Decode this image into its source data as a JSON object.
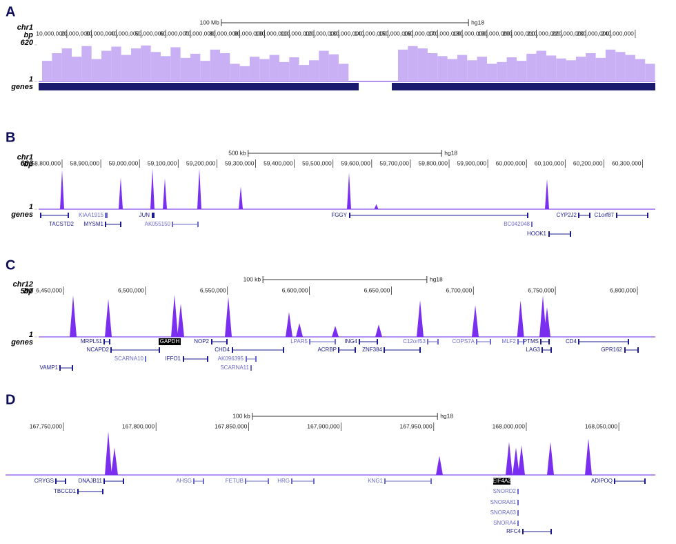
{
  "panels": [
    {
      "label": "A",
      "chrom": "chr1",
      "unit": "bp",
      "ylim": [
        1,
        620
      ],
      "yticks": [
        1,
        620
      ],
      "genes_label": "genes",
      "scale_bar": {
        "value": 100000000,
        "label": "100 Mb"
      },
      "assembly": "hg18",
      "xlim": [
        0,
        247000000
      ],
      "xticks": [
        {
          "value": 10000000,
          "label": "10,000,000"
        },
        {
          "value": 20000000,
          "label": "20,000,000"
        },
        {
          "value": 30000000,
          "label": "30,000,000"
        },
        {
          "value": 40000000,
          "label": "40,000,000"
        },
        {
          "value": 50000000,
          "label": "50,000,000"
        },
        {
          "value": 60000000,
          "label": "60,000,000"
        },
        {
          "value": 70000000,
          "label": "70,000,000"
        },
        {
          "value": 80000000,
          "label": "80,000,000"
        },
        {
          "value": 90000000,
          "label": "90,000,000"
        },
        {
          "value": 100000000,
          "label": "100,000,000"
        },
        {
          "value": 110000000,
          "label": "110,000,000"
        },
        {
          "value": 120000000,
          "label": "120,000,000"
        },
        {
          "value": 130000000,
          "label": "130,000,000"
        },
        {
          "value": 140000000,
          "label": "140,000,000"
        },
        {
          "value": 150000000,
          "label": "150,000,000"
        },
        {
          "value": 160000000,
          "label": "160,000,000"
        },
        {
          "value": 170000000,
          "label": "170,000,000"
        },
        {
          "value": 180000000,
          "label": "180,000,000"
        },
        {
          "value": 190000000,
          "label": "190,000,000"
        },
        {
          "value": 200000000,
          "label": "200,000,000"
        },
        {
          "value": 210000000,
          "label": "210,000,000"
        },
        {
          "value": 220000000,
          "label": "220,000,000"
        },
        {
          "value": 230000000,
          "label": "230,000,000"
        },
        {
          "value": 240000000,
          "label": "240,000,000"
        }
      ],
      "signal": {
        "x": [
          2000000,
          6000000,
          10000000,
          14000000,
          18000000,
          22000000,
          26000000,
          30000000,
          34000000,
          38000000,
          42000000,
          46000000,
          50000000,
          54000000,
          58000000,
          62000000,
          66000000,
          70000000,
          74000000,
          78000000,
          82000000,
          86000000,
          90000000,
          94000000,
          98000000,
          102000000,
          106000000,
          110000000,
          114000000,
          118000000,
          122000000,
          126000000,
          130000000,
          134000000,
          138000000,
          142000000,
          146000000,
          150000000,
          154000000,
          158000000,
          162000000,
          166000000,
          170000000,
          174000000,
          178000000,
          182000000,
          186000000,
          190000000,
          194000000,
          198000000,
          202000000,
          206000000,
          210000000,
          214000000,
          218000000,
          222000000,
          226000000,
          230000000,
          234000000,
          238000000,
          242000000,
          246000000
        ],
        "values": [
          350,
          480,
          560,
          420,
          600,
          380,
          520,
          590,
          450,
          560,
          610,
          500,
          430,
          580,
          400,
          470,
          350,
          540,
          480,
          300,
          260,
          420,
          380,
          450,
          330,
          410,
          280,
          360,
          520,
          460,
          300,
          null,
          null,
          null,
          null,
          null,
          540,
          600,
          560,
          480,
          430,
          380,
          450,
          360,
          420,
          300,
          330,
          410,
          350,
          470,
          520,
          440,
          390,
          360,
          420,
          480,
          400,
          540,
          500,
          450,
          380,
          300
        ]
      },
      "genes": []
    },
    {
      "label": "B",
      "chrom": "chr1",
      "unit": "bp",
      "ylim": [
        1,
        603
      ],
      "yticks": [
        1,
        603
      ],
      "genes_label": "genes",
      "scale_bar": {
        "value": 500000,
        "label": "500 kb"
      },
      "assembly": "hg18",
      "xlim": [
        58739400,
        60332900
      ],
      "xticks": [
        {
          "value": 58800000,
          "label": "58,800,000"
        },
        {
          "value": 58900000,
          "label": "58,900,000"
        },
        {
          "value": 59000000,
          "label": "59,000,000"
        },
        {
          "value": 59100000,
          "label": "59,100,000"
        },
        {
          "value": 59200000,
          "label": "59,200,000"
        },
        {
          "value": 59300000,
          "label": "59,300,000"
        },
        {
          "value": 59400000,
          "label": "59,400,000"
        },
        {
          "value": 59500000,
          "label": "59,500,000"
        },
        {
          "value": 59600000,
          "label": "59,600,000"
        },
        {
          "value": 59700000,
          "label": "59,700,000"
        },
        {
          "value": 59800000,
          "label": "59,800,000"
        },
        {
          "value": 59900000,
          "label": "59,900,000"
        },
        {
          "value": 60000000,
          "label": "60,000,000"
        },
        {
          "value": 60100000,
          "label": "60,100,000"
        },
        {
          "value": 60200000,
          "label": "60,200,000"
        },
        {
          "value": 60300000,
          "label": "60,300,000"
        }
      ],
      "signal": {
        "x": [
          58800000,
          58951500,
          59033500,
          59065600,
          59154700,
          59261700,
          59541500,
          59612000,
          60053100
        ],
        "values": [
          545,
          440,
          565,
          430,
          565,
          315,
          507,
          70,
          421
        ]
      },
      "genes": [
        "TACSTD2",
        "KIAA1915",
        "MYSM1",
        "JUN",
        "AK055150",
        "FGGY",
        "BC042048",
        "HOOK1",
        "CYP2J2",
        "C1orf87"
      ]
    },
    {
      "label": "C",
      "chrom": "chr12",
      "unit": "bp",
      "ylim": [
        1,
        597
      ],
      "yticks": [
        1,
        597
      ],
      "genes_label": "genes",
      "scale_bar": {
        "value": 100000,
        "label": "100 kb"
      },
      "assembly": "hg18",
      "xlim": [
        6434850,
        6810950
      ],
      "xticks": [
        {
          "value": 6450000,
          "label": "6,450,000"
        },
        {
          "value": 6500000,
          "label": "6,500,000"
        },
        {
          "value": 6550000,
          "label": "6,550,000"
        },
        {
          "value": 6600000,
          "label": "6,600,000"
        },
        {
          "value": 6650000,
          "label": "6,650,000"
        },
        {
          "value": 6700000,
          "label": "6,700,000"
        },
        {
          "value": 6750000,
          "label": "6,750,000"
        },
        {
          "value": 6800000,
          "label": "6,800,000"
        }
      ],
      "signal": {
        "x": [
          6455890,
          6477350,
          6517730,
          6521520,
          6550550,
          6587570,
          6593880,
          6615760,
          6642260,
          6667500,
          6701160,
          6728770,
          6742390,
          6744910
        ],
        "values": [
          569,
          521,
          578,
          455,
          550,
          342,
          190,
          152,
          171,
          502,
          436,
          502,
          569,
          408
        ]
      },
      "genes": [
        "MRPL51",
        "NCAPD2",
        "SCARNA10",
        "GAPDH",
        "IFFO1",
        "NOP2",
        "CHD4",
        "AK096395",
        "SCARNA11",
        "LPAR5",
        "ACRBP",
        "ING4",
        "ZNF384",
        "C12orf53",
        "COPS7A",
        "MLF2",
        "PTMS",
        "LAG3",
        "CD4",
        "GPR162",
        "VAMP1"
      ]
    },
    {
      "label": "D",
      "ylim": [
        0,
        100
      ],
      "scale_bar": {
        "value": 100000,
        "label": "100 kb"
      },
      "assembly": "hg18",
      "xlim": [
        167718700,
        168069690
      ],
      "xticks": [
        {
          "value": 167750000,
          "label": "167,750,000"
        },
        {
          "value": 167800000,
          "label": "167,800,000"
        },
        {
          "value": 167850000,
          "label": "167,850,000"
        },
        {
          "value": 167900000,
          "label": "167,900,000"
        },
        {
          "value": 167950000,
          "label": "167,950,000"
        },
        {
          "value": 168000000,
          "label": "168,000,000"
        },
        {
          "value": 168050000,
          "label": "168,050,000"
        }
      ],
      "signal": {
        "x": [
          167774220,
          167777570,
          167953070,
          167990700,
          167994430,
          167997410,
          168013060,
          168033550
        ],
        "values": [
          100,
          63,
          44,
          76,
          63,
          68,
          76,
          84
        ]
      },
      "genes": [
        "CRYGS",
        "TBCCD1",
        "DNAJB11",
        "AHSG",
        "FETUB",
        "HRG",
        "KNG1",
        "EIF4A2",
        "SNORD2",
        "SNORA81",
        "SNORA63",
        "SNORA4",
        "RFC4",
        "ADIPOQ"
      ]
    }
  ]
}
